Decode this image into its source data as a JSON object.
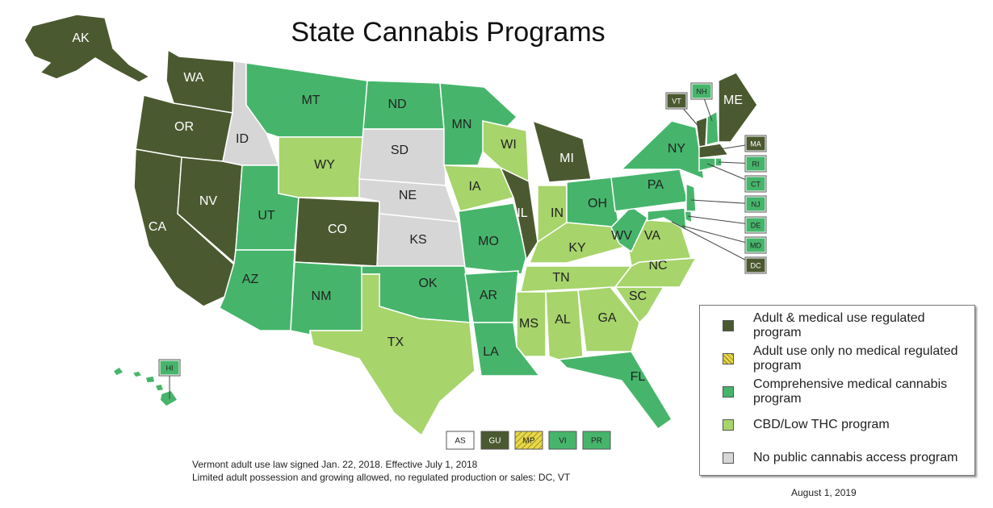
{
  "title": "State Cannabis Programs",
  "legend": [
    {
      "label": "Adult & medical use regulated program",
      "color": "#4b5930"
    },
    {
      "label": "Adult use only no medical regulated program",
      "color": "#e8d94c",
      "hatch": true
    },
    {
      "label": "Comprehensive medical cannabis program",
      "color": "#46b56b"
    },
    {
      "label": "CBD/Low THC program",
      "color": "#a7d46b"
    },
    {
      "label": "No public cannabis access program",
      "color": "#d6d6d6"
    }
  ],
  "states": [
    {
      "label": "AK",
      "category": 0
    },
    {
      "label": "WA",
      "category": 0
    },
    {
      "label": "OR",
      "category": 0
    },
    {
      "label": "CA",
      "category": 0
    },
    {
      "label": "NV",
      "category": 0
    },
    {
      "label": "ID",
      "category": 4
    },
    {
      "label": "MT",
      "category": 2
    },
    {
      "label": "WY",
      "category": 3
    },
    {
      "label": "UT",
      "category": 2
    },
    {
      "label": "CO",
      "category": 0
    },
    {
      "label": "AZ",
      "category": 2
    },
    {
      "label": "NM",
      "category": 2
    },
    {
      "label": "ND",
      "category": 2
    },
    {
      "label": "SD",
      "category": 4
    },
    {
      "label": "NE",
      "category": 4
    },
    {
      "label": "KS",
      "category": 4
    },
    {
      "label": "OK",
      "category": 2
    },
    {
      "label": "TX",
      "category": 3
    },
    {
      "label": "MN",
      "category": 2
    },
    {
      "label": "IA",
      "category": 3
    },
    {
      "label": "MO",
      "category": 2
    },
    {
      "label": "AR",
      "category": 2
    },
    {
      "label": "LA",
      "category": 2
    },
    {
      "label": "WI",
      "category": 3
    },
    {
      "label": "IL",
      "category": 0
    },
    {
      "label": "MI",
      "category": 0
    },
    {
      "label": "IN",
      "category": 3
    },
    {
      "label": "OH",
      "category": 2
    },
    {
      "label": "KY",
      "category": 3
    },
    {
      "label": "TN",
      "category": 3
    },
    {
      "label": "MS",
      "category": 3
    },
    {
      "label": "AL",
      "category": 3
    },
    {
      "label": "GA",
      "category": 3
    },
    {
      "label": "FL",
      "category": 2
    },
    {
      "label": "SC",
      "category": 3
    },
    {
      "label": "NC",
      "category": 3
    },
    {
      "label": "VA",
      "category": 3
    },
    {
      "label": "WV",
      "category": 2
    },
    {
      "label": "PA",
      "category": 2
    },
    {
      "label": "NY",
      "category": 2
    },
    {
      "label": "VT",
      "category": 0
    },
    {
      "label": "NH",
      "category": 2
    },
    {
      "label": "ME",
      "category": 0
    },
    {
      "label": "MA",
      "category": 0
    },
    {
      "label": "RI",
      "category": 2
    },
    {
      "label": "CT",
      "category": 2
    },
    {
      "label": "NJ",
      "category": 2
    },
    {
      "label": "DE",
      "category": 2
    },
    {
      "label": "MD",
      "category": 2
    },
    {
      "label": "DC",
      "category": 0
    },
    {
      "label": "HI",
      "category": 2
    }
  ],
  "territories": [
    {
      "label": "AS",
      "category": 4
    },
    {
      "label": "GU",
      "category": 0
    },
    {
      "label": "MP",
      "category": 1
    },
    {
      "label": "VI",
      "category": 2
    },
    {
      "label": "PR",
      "category": 2
    }
  ],
  "notes": [
    "Vermont adult use law signed Jan. 22, 2018. Effective July 1, 2018",
    "Limited adult possession and growing allowed, no regulated production or sales: DC, VT"
  ],
  "date": "August 1, 2019"
}
